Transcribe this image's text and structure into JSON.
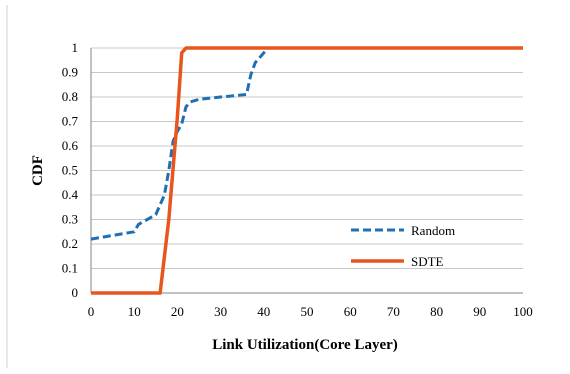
{
  "chart_data": {
    "type": "line",
    "title": "",
    "xlabel": "Link Utilization(Core Layer)",
    "ylabel": "CDF",
    "xlim": [
      0,
      100
    ],
    "ylim": [
      0,
      1
    ],
    "x_ticks": [
      "0",
      "10",
      "20",
      "30",
      "40",
      "50",
      "60",
      "70",
      "80",
      "90",
      "100"
    ],
    "y_ticks": [
      "0",
      "0.1",
      "0.2",
      "0.3",
      "0.4",
      "0.5",
      "0.6",
      "0.7",
      "0.8",
      "0.9",
      "1"
    ],
    "grid": "horizontal",
    "legend_position": "bottom-right",
    "series": [
      {
        "name": "Random",
        "color": "#1f6fb4",
        "line_style": "dashed",
        "x": [
          0,
          10,
          11,
          15,
          17,
          18,
          19,
          20,
          21,
          22,
          23,
          25,
          30,
          36,
          37,
          38,
          40,
          41,
          100
        ],
        "y": [
          0.22,
          0.25,
          0.28,
          0.32,
          0.4,
          0.5,
          0.62,
          0.66,
          0.69,
          0.76,
          0.78,
          0.79,
          0.8,
          0.81,
          0.89,
          0.94,
          0.98,
          1.0,
          1.0
        ]
      },
      {
        "name": "SDTE",
        "color": "#e8561e",
        "line_style": "solid",
        "x": [
          0,
          16,
          18,
          20,
          21,
          22,
          100
        ],
        "y": [
          0,
          0,
          0.3,
          0.72,
          0.98,
          1.0,
          1.0
        ]
      }
    ]
  }
}
